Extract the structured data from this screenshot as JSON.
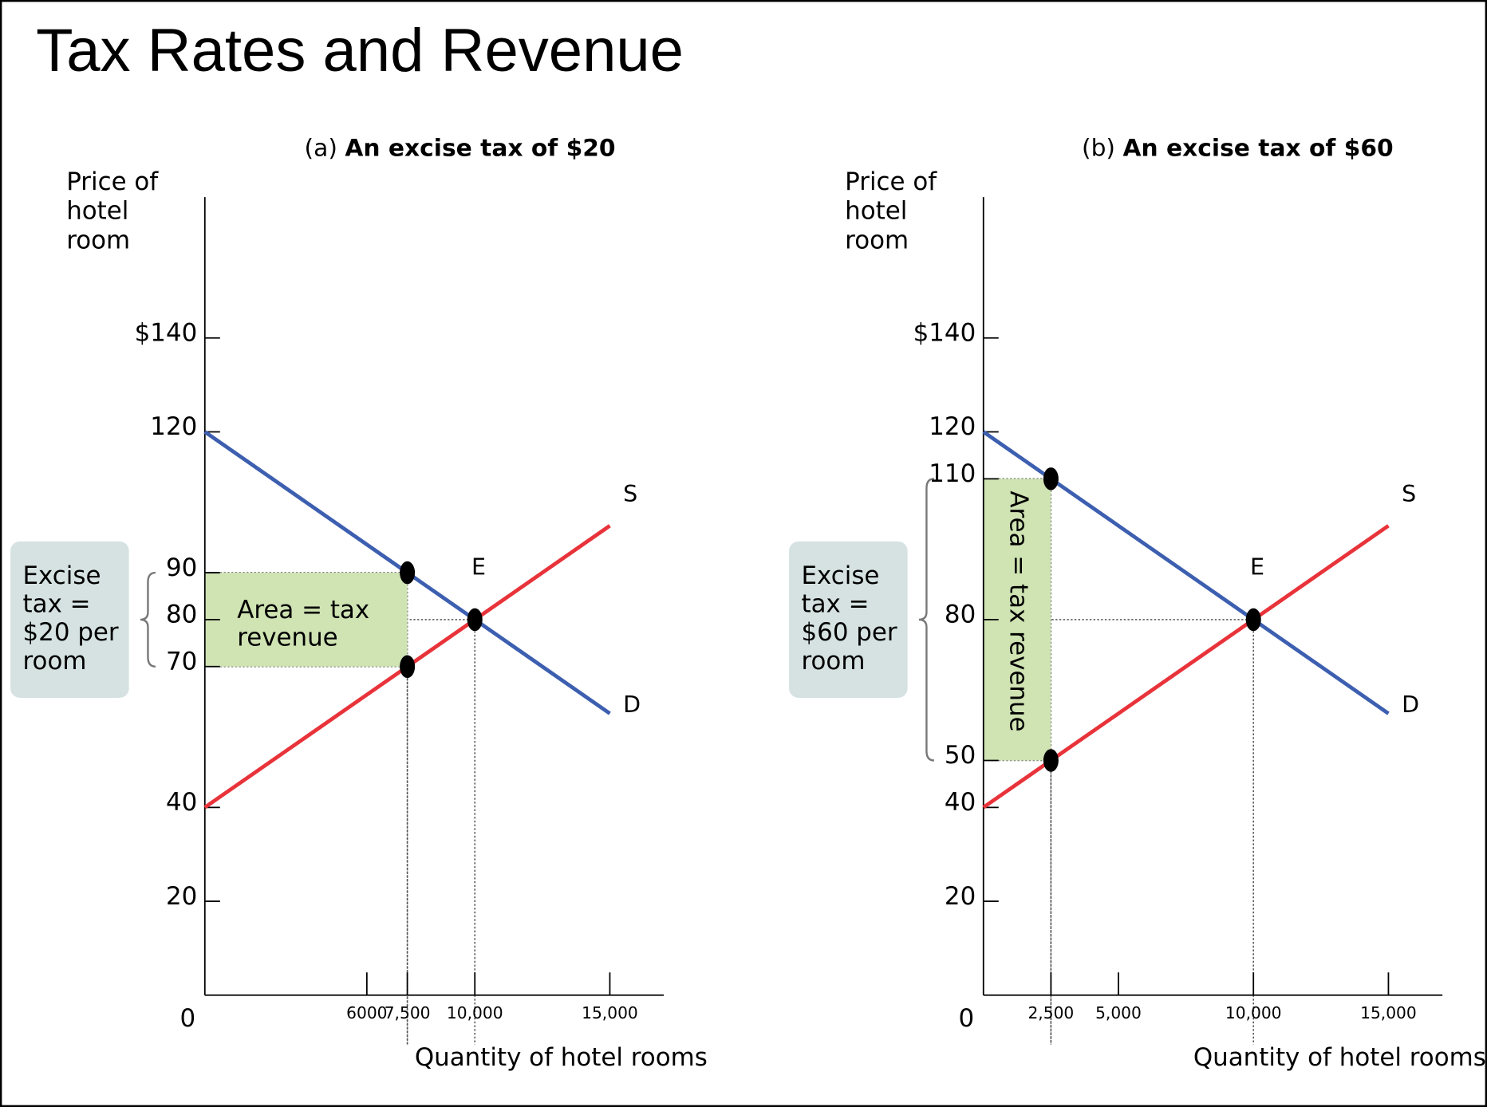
{
  "title": "Tax Rates and Revenue",
  "chart_data": [
    {
      "type": "line",
      "title_prefix": "(a)",
      "title": "An excise tax of $20",
      "y_label": [
        "Price of",
        "hotel",
        "room"
      ],
      "x_label": "Quantity of hotel rooms",
      "xlim": [
        0,
        17000
      ],
      "ylim": [
        0,
        170
      ],
      "xticks": [
        0,
        6000,
        {
          "value": 7500,
          "label": "7,500"
        },
        {
          "value": 10000,
          "label": "10,000"
        },
        {
          "value": 15000,
          "label": "15,000"
        }
      ],
      "yticks": [
        {
          "value": 140,
          "label": "$140"
        },
        120,
        90,
        80,
        70,
        40,
        20
      ],
      "series": [
        {
          "name": "D",
          "color": "#3d5fb0",
          "x": [
            0,
            15000
          ],
          "values": [
            120,
            60
          ]
        },
        {
          "name": "S",
          "color": "#e8333a",
          "x": [
            0,
            15000
          ],
          "values": [
            40,
            100
          ]
        }
      ],
      "points": [
        {
          "x": 7500,
          "y": 90
        },
        {
          "x": 7500,
          "y": 70
        },
        {
          "x": 10000,
          "y": 80,
          "label": "E"
        }
      ],
      "tax_area_label": [
        "Area = tax",
        "revenue"
      ],
      "tax_area_label_rotated": false,
      "tax_area_color": "#cfe3b3",
      "tax_note": [
        "Excise",
        "tax =",
        "$20 per",
        "room"
      ],
      "note_color": "#d6e2e2"
    },
    {
      "type": "line",
      "title_prefix": "(b)",
      "title": "An excise tax of $60",
      "y_label": [
        "Price of",
        "hotel",
        "room"
      ],
      "x_label": "Quantity of hotel rooms",
      "xlim": [
        0,
        17000
      ],
      "ylim": [
        0,
        170
      ],
      "xticks": [
        0,
        {
          "value": 2500,
          "label": "2,500"
        },
        {
          "value": 5000,
          "label": "5,000"
        },
        {
          "value": 10000,
          "label": "10,000"
        },
        {
          "value": 15000,
          "label": "15,000"
        }
      ],
      "yticks": [
        {
          "value": 140,
          "label": "$140"
        },
        120,
        110,
        80,
        50,
        40,
        20
      ],
      "series": [
        {
          "name": "D",
          "color": "#3d5fb0",
          "x": [
            0,
            15000
          ],
          "values": [
            120,
            60
          ]
        },
        {
          "name": "S",
          "color": "#e8333a",
          "x": [
            0,
            15000
          ],
          "values": [
            40,
            100
          ]
        }
      ],
      "points": [
        {
          "x": 2500,
          "y": 110
        },
        {
          "x": 2500,
          "y": 50
        },
        {
          "x": 10000,
          "y": 80,
          "label": "E"
        }
      ],
      "tax_area_label": [
        "Area = tax revenue"
      ],
      "tax_area_label_rotated": true,
      "tax_area_color": "#cfe3b3",
      "tax_note": [
        "Excise",
        "tax =",
        "$60 per",
        "room"
      ],
      "note_color": "#d6e2e2"
    }
  ]
}
